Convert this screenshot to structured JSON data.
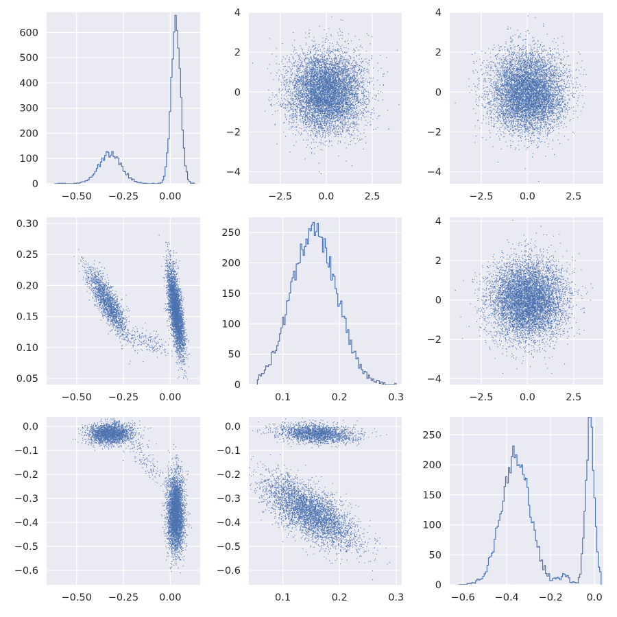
{
  "theme": {
    "background": "#ffffff",
    "panel_background": "#eaeaf2",
    "grid_color": "#ffffff",
    "series_color": "#4c72b0",
    "text_color": "#262626"
  },
  "chart_data": [
    {
      "id": "p11",
      "type": "histogram",
      "row": 0,
      "col": 0,
      "grid": true,
      "xlim": [
        -0.66,
        0.16
      ],
      "ylim": [
        0,
        680
      ],
      "xticks": [
        -0.5,
        -0.25,
        0.0
      ],
      "xtick_labels": [
        "−0.50",
        "−0.25",
        "0.00"
      ],
      "yticks": [
        0,
        100,
        200,
        300,
        400,
        500,
        600
      ],
      "ytick_labels": [
        "0",
        "100",
        "200",
        "300",
        "400",
        "500",
        "600"
      ],
      "peaks": [
        {
          "center": -0.32,
          "width": 0.06,
          "height": 120
        },
        {
          "center": 0.03,
          "width": 0.025,
          "height": 640
        }
      ],
      "x_range": [
        -0.62,
        0.13
      ]
    },
    {
      "id": "p12",
      "type": "scatter",
      "row": 0,
      "col": 1,
      "grid": true,
      "xlim": [
        -4.2,
        4.1
      ],
      "ylim": [
        -4.6,
        4.0
      ],
      "xticks": [
        -2.5,
        0.0,
        2.5
      ],
      "xtick_labels": [
        "−2.5",
        "0.0",
        "2.5"
      ],
      "yticks": [
        -4,
        -2,
        0,
        2,
        4
      ],
      "ytick_labels": [
        "−4",
        "−2",
        "0",
        "2",
        "4"
      ],
      "clusters": [
        {
          "mx": 0,
          "my": 0,
          "sx": 1,
          "sy": 1,
          "rho": 0,
          "n": 7000
        }
      ]
    },
    {
      "id": "p13",
      "type": "scatter",
      "row": 0,
      "col": 2,
      "grid": true,
      "xlim": [
        -4.2,
        4.1
      ],
      "ylim": [
        -4.6,
        4.0
      ],
      "xticks": [
        -2.5,
        0.0,
        2.5
      ],
      "xtick_labels": [
        "−2.5",
        "0.0",
        "2.5"
      ],
      "yticks": [
        -4,
        -2,
        0,
        2,
        4
      ],
      "ytick_labels": [
        "−4",
        "−2",
        "0",
        "2",
        "4"
      ],
      "clusters": [
        {
          "mx": 0,
          "my": 0,
          "sx": 1,
          "sy": 1,
          "rho": 0,
          "n": 7000
        }
      ]
    },
    {
      "id": "p21",
      "type": "scatter",
      "row": 1,
      "col": 0,
      "grid": true,
      "xlim": [
        -0.66,
        0.16
      ],
      "ylim": [
        0.04,
        0.31
      ],
      "xticks": [
        -0.5,
        -0.25,
        0.0
      ],
      "xtick_labels": [
        "−0.50",
        "−0.25",
        "0.00"
      ],
      "yticks": [
        0.05,
        0.1,
        0.15,
        0.2,
        0.25,
        0.3
      ],
      "ytick_labels": [
        "0.05",
        "0.10",
        "0.15",
        "0.20",
        "0.25",
        "0.30"
      ],
      "clusters": [
        {
          "mx": -0.33,
          "my": 0.17,
          "sx": 0.055,
          "sy": 0.028,
          "rho": -0.85,
          "n": 1800
        },
        {
          "mx": 0.03,
          "my": 0.16,
          "sx": 0.022,
          "sy": 0.035,
          "rho": -0.65,
          "n": 3800
        },
        {
          "mx": -0.12,
          "my": 0.11,
          "sx": 0.06,
          "sy": 0.012,
          "rho": -0.6,
          "n": 160
        }
      ]
    },
    {
      "id": "p22",
      "type": "histogram",
      "row": 1,
      "col": 1,
      "grid": true,
      "xlim": [
        0.04,
        0.31
      ],
      "ylim": [
        0,
        275
      ],
      "xticks": [
        0.1,
        0.2,
        0.3
      ],
      "xtick_labels": [
        "0.1",
        "0.2",
        "0.3"
      ],
      "yticks": [
        0,
        50,
        100,
        150,
        200,
        250
      ],
      "ytick_labels": [
        "0",
        "50",
        "100",
        "150",
        "200",
        "250"
      ],
      "peaks": [
        {
          "center": 0.155,
          "width": 0.04,
          "height": 255
        }
      ],
      "x_range": [
        0.055,
        0.3
      ]
    },
    {
      "id": "p23",
      "type": "scatter",
      "row": 1,
      "col": 2,
      "grid": true,
      "xlim": [
        -4.2,
        4.1
      ],
      "ylim": [
        -4.3,
        4.2
      ],
      "xticks": [
        -2.5,
        0.0,
        2.5
      ],
      "xtick_labels": [
        "−2.5",
        "0.0",
        "2.5"
      ],
      "yticks": [
        -4,
        -2,
        0,
        2,
        4
      ],
      "ytick_labels": [
        "−4",
        "−2",
        "0",
        "2",
        "4"
      ],
      "clusters": [
        {
          "mx": 0,
          "my": 0,
          "sx": 1,
          "sy": 1,
          "rho": 0,
          "n": 7000
        }
      ]
    },
    {
      "id": "p31",
      "type": "scatter",
      "row": 2,
      "col": 0,
      "grid": true,
      "xlim": [
        -0.66,
        0.16
      ],
      "ylim": [
        -0.66,
        0.04
      ],
      "xticks": [
        -0.5,
        -0.25,
        0.0
      ],
      "xtick_labels": [
        "−0.50",
        "−0.25",
        "0.00"
      ],
      "yticks": [
        -0.6,
        -0.5,
        -0.4,
        -0.3,
        -0.2,
        -0.1,
        0.0
      ],
      "ytick_labels": [
        "−0.6",
        "−0.5",
        "−0.4",
        "−0.3",
        "−0.2",
        "−0.1",
        "0.0"
      ],
      "clusters": [
        {
          "mx": -0.32,
          "my": -0.03,
          "sx": 0.06,
          "sy": 0.022,
          "rho": 0.1,
          "n": 2200
        },
        {
          "mx": 0.03,
          "my": -0.36,
          "sx": 0.022,
          "sy": 0.08,
          "rho": 0.0,
          "n": 3800
        },
        {
          "mx": -0.13,
          "my": -0.14,
          "sx": 0.06,
          "sy": 0.06,
          "rho": -0.8,
          "n": 150
        }
      ]
    },
    {
      "id": "p32",
      "type": "scatter",
      "row": 2,
      "col": 1,
      "grid": true,
      "xlim": [
        0.04,
        0.31
      ],
      "ylim": [
        -0.66,
        0.04
      ],
      "xticks": [
        0.1,
        0.2,
        0.3
      ],
      "xtick_labels": [
        "0.1",
        "0.2",
        "0.3"
      ],
      "yticks": [
        -0.6,
        -0.5,
        -0.4,
        -0.3,
        -0.2,
        -0.1,
        0.0
      ],
      "ytick_labels": [
        "−0.6",
        "−0.5",
        "−0.4",
        "−0.3",
        "−0.2",
        "−0.1",
        "0.0"
      ],
      "clusters": [
        {
          "mx": 0.16,
          "my": -0.03,
          "sx": 0.035,
          "sy": 0.02,
          "rho": -0.2,
          "n": 2000
        },
        {
          "mx": 0.15,
          "my": -0.36,
          "sx": 0.04,
          "sy": 0.075,
          "rho": -0.7,
          "n": 4000
        }
      ]
    },
    {
      "id": "p33",
      "type": "histogram",
      "row": 2,
      "col": 2,
      "grid": true,
      "xlim": [
        -0.66,
        0.04
      ],
      "ylim": [
        0,
        280
      ],
      "xticks": [
        -0.6,
        -0.4,
        -0.2,
        0.0
      ],
      "xtick_labels": [
        "−0.6",
        "−0.4",
        "−0.2",
        "0.0"
      ],
      "yticks": [
        0,
        50,
        100,
        150,
        200,
        250
      ],
      "ytick_labels": [
        "0",
        "50",
        "100",
        "150",
        "200",
        "250"
      ],
      "peaks": [
        {
          "center": -0.36,
          "width": 0.065,
          "height": 215
        },
        {
          "center": -0.02,
          "width": 0.02,
          "height": 270
        },
        {
          "center": -0.14,
          "width": 0.025,
          "height": 14
        }
      ],
      "x_range": [
        -0.62,
        0.03
      ]
    }
  ]
}
